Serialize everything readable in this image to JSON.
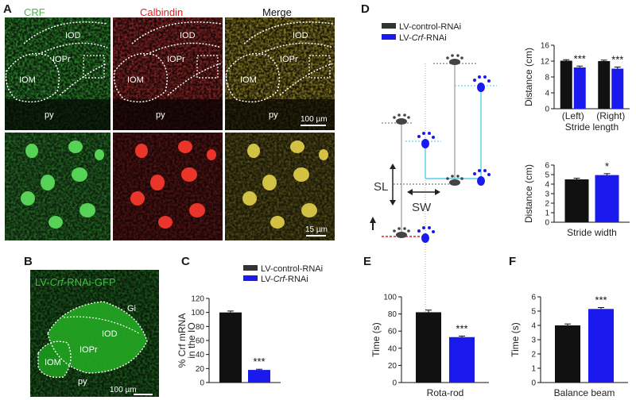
{
  "panels": {
    "A": "A",
    "B": "B",
    "C": "C",
    "D": "D",
    "E": "E",
    "F": "F"
  },
  "colors": {
    "control": "#111111",
    "rnai": "#1a1aee",
    "green": "#3fbf3f",
    "red": "#e02020",
    "cyan": "#33c8e8"
  },
  "panel_a": {
    "channels": [
      "CRF",
      "Calbindin",
      "Merge"
    ],
    "regions": [
      "IOD",
      "IOPr",
      "IOM",
      "py"
    ],
    "scale_top": "100 µm",
    "scale_bottom": "15 µm"
  },
  "panel_b": {
    "title_prefix": "LV-",
    "title_italic": "Crf",
    "title_suffix": "-RNAi-GFP",
    "regions": [
      "Gi",
      "IOD",
      "IOPr",
      "IOM",
      "py"
    ],
    "scale": "100 µm"
  },
  "legend": {
    "control": "LV-control-RNAi",
    "rnai_prefix": "LV-",
    "rnai_italic": "Crf",
    "rnai_suffix": "-RNAi"
  },
  "panel_d": {
    "sl": "SL",
    "sw": "SW"
  },
  "chart_data": [
    {
      "id": "C",
      "type": "bar",
      "ylabel_lines": [
        "% Crf mRNA",
        "in the IO"
      ],
      "ylim": [
        0,
        120
      ],
      "yticks": [
        0,
        20,
        40,
        60,
        80,
        100,
        120
      ],
      "series": [
        {
          "name": "LV-control-RNAi",
          "values": [
            100
          ],
          "err": [
            2
          ]
        },
        {
          "name": "LV-Crf-RNAi",
          "values": [
            18
          ],
          "err": [
            1
          ]
        }
      ],
      "significance": "***"
    },
    {
      "id": "D1",
      "type": "bar",
      "title": "Stride length",
      "ylabel": "Distance (cm)",
      "categories": [
        "(Left)",
        "(Right)"
      ],
      "ylim": [
        0,
        16
      ],
      "yticks": [
        0,
        4,
        8,
        12,
        16
      ],
      "series": [
        {
          "name": "LV-control-RNAi",
          "values": [
            12.1,
            12.0
          ],
          "err": [
            0.25,
            0.25
          ]
        },
        {
          "name": "LV-Crf-RNAi",
          "values": [
            10.4,
            10.1
          ],
          "err": [
            0.35,
            0.4
          ]
        }
      ],
      "significance": [
        "***",
        "***"
      ]
    },
    {
      "id": "D2",
      "type": "bar",
      "title": "Stride width",
      "ylabel": "Distance (cm)",
      "ylim": [
        0,
        6
      ],
      "yticks": [
        0,
        1,
        2,
        3,
        4,
        5,
        6
      ],
      "series": [
        {
          "name": "LV-control-RNAi",
          "values": [
            4.5
          ],
          "err": [
            0.12
          ]
        },
        {
          "name": "LV-Crf-RNAi",
          "values": [
            4.95
          ],
          "err": [
            0.15
          ]
        }
      ],
      "significance": "*"
    },
    {
      "id": "E",
      "type": "bar",
      "title": "Rota-rod",
      "ylabel": "Time (s)",
      "ylim": [
        0,
        100
      ],
      "yticks": [
        0,
        20,
        40,
        60,
        80,
        100
      ],
      "series": [
        {
          "name": "LV-control-RNAi",
          "values": [
            82
          ],
          "err": [
            2.5
          ]
        },
        {
          "name": "LV-Crf-RNAi",
          "values": [
            53
          ],
          "err": [
            1.2
          ]
        }
      ],
      "significance": "***"
    },
    {
      "id": "F",
      "type": "bar",
      "title": "Balance beam",
      "ylabel": "Time (s)",
      "ylim": [
        0,
        6
      ],
      "yticks": [
        0,
        1,
        2,
        3,
        4,
        5,
        6
      ],
      "series": [
        {
          "name": "LV-control-RNAi",
          "values": [
            4.0
          ],
          "err": [
            0.1
          ]
        },
        {
          "name": "LV-Crf-RNAi",
          "values": [
            5.15
          ],
          "err": [
            0.1
          ]
        }
      ],
      "significance": "***"
    }
  ]
}
